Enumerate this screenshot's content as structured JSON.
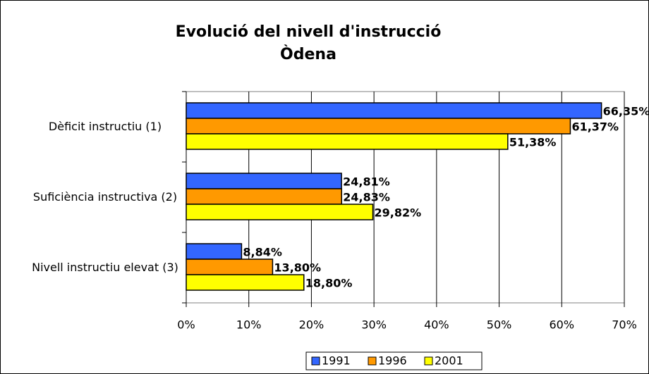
{
  "chart_data": {
    "type": "hbar",
    "title_lines": [
      "Evolució del nivell d'instrucció",
      "Òdena"
    ],
    "categories": [
      "Dèficit instructiu (1)",
      "Suficiència instructiva (2)",
      "Nivell instructiu elevat (3)"
    ],
    "series": [
      {
        "name": "1991",
        "color": "#3366ff",
        "values": [
          66.35,
          24.81,
          8.84
        ],
        "value_labels": [
          "66,35%",
          "24,81%",
          "8,84%"
        ]
      },
      {
        "name": "1996",
        "color": "#ff9900",
        "values": [
          61.37,
          24.83,
          13.8
        ],
        "value_labels": [
          "61,37%",
          "24,83%",
          "13,80%"
        ]
      },
      {
        "name": "2001",
        "color": "#ffff00",
        "values": [
          51.38,
          29.82,
          18.8
        ],
        "value_labels": [
          "51,38%",
          "29,82%",
          "18,80%"
        ]
      }
    ],
    "xlim": [
      0,
      70
    ],
    "xticks": [
      {
        "value": 0,
        "label": "0%"
      },
      {
        "value": 10,
        "label": "10%"
      },
      {
        "value": 20,
        "label": "20%"
      },
      {
        "value": 30,
        "label": "30%"
      },
      {
        "value": 40,
        "label": "40%"
      },
      {
        "value": 50,
        "label": "50%"
      },
      {
        "value": 60,
        "label": "60%"
      },
      {
        "value": 70,
        "label": "70%"
      }
    ],
    "grid": true,
    "legend": "bottom"
  }
}
